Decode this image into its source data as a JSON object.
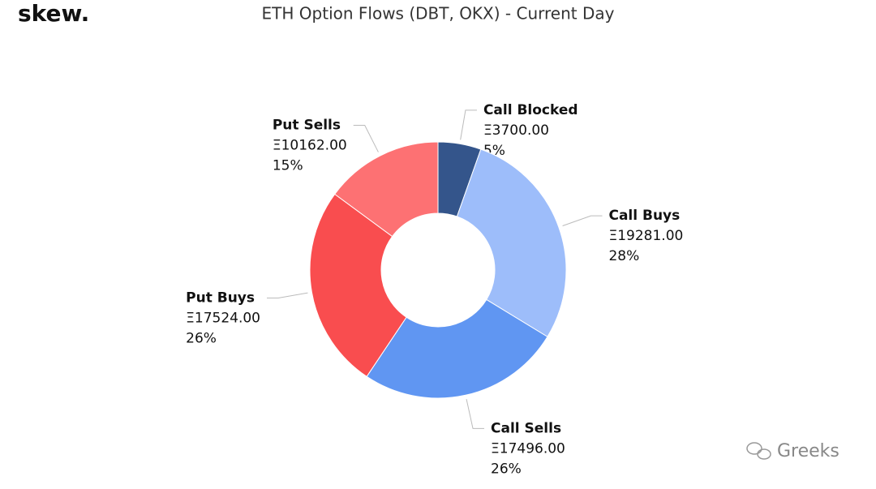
{
  "brand": "skew.",
  "watermark": "Greeks",
  "chart_data": {
    "type": "pie",
    "donut": true,
    "title": "ETH Option Flows (DBT, OKX) - Current Day",
    "categories": [
      "Call Blocked",
      "Call Buys",
      "Call Sells",
      "Put Buys",
      "Put Sells"
    ],
    "values": [
      3700,
      19281,
      17496,
      17524,
      10162
    ],
    "value_labels": [
      "Ξ3700.00",
      "Ξ19281.00",
      "Ξ17496.00",
      "Ξ17524.00",
      "Ξ10162.00"
    ],
    "percent_labels": [
      "5%",
      "28%",
      "26%",
      "26%",
      "15%"
    ],
    "colors": [
      "#34558b",
      "#9dbdfa",
      "#6096f2",
      "#f94d4f",
      "#fd7173"
    ]
  }
}
